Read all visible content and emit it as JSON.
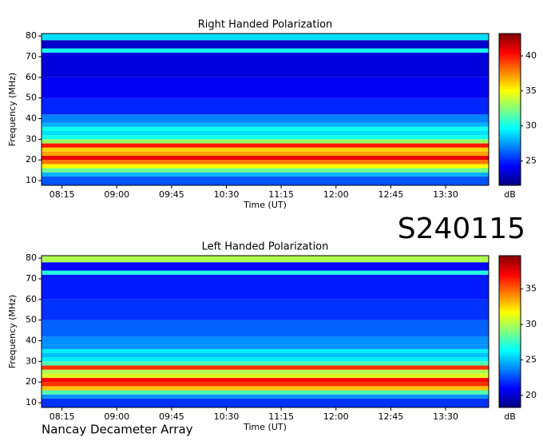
{
  "chart_data": [
    {
      "type": "heatmap",
      "title": "Right Handed Polarization",
      "xlabel": "Time (UT)",
      "ylabel": "Frequency (MHz)",
      "xlim": [
        7.97,
        14.09
      ],
      "xticks": [
        {
          "value": 8.25,
          "label": "08:15"
        },
        {
          "value": 9,
          "label": "09:00"
        },
        {
          "value": 9.75,
          "label": "09:45"
        },
        {
          "value": 10.5,
          "label": "10:30"
        },
        {
          "value": 11.25,
          "label": "11:15"
        },
        {
          "value": 12,
          "label": "12:00"
        },
        {
          "value": 12.75,
          "label": "12:45"
        },
        {
          "value": 13.5,
          "label": "13:30"
        }
      ],
      "ylim": [
        7.7,
        81.2
      ],
      "yticks": [
        10,
        20,
        30,
        40,
        50,
        60,
        70,
        80
      ],
      "y_bins": [
        7.7,
        12,
        14,
        16,
        18,
        20,
        22,
        24,
        26,
        28,
        30,
        32,
        34,
        36,
        38,
        42,
        50,
        60,
        72,
        74,
        78,
        81.2
      ],
      "values": [
        26,
        28,
        32,
        35,
        38,
        41,
        37,
        36,
        40,
        33,
        30,
        29,
        30,
        28,
        27,
        25,
        24,
        23.5,
        30,
        23,
        29
      ],
      "colormap": "jet",
      "clim": [
        21.5,
        43.2
      ],
      "cticks": [
        25,
        30,
        35,
        40
      ],
      "clabel": "dB"
    },
    {
      "type": "heatmap",
      "title": "Left Handed Polarization",
      "xlabel": "Time (UT)",
      "ylabel": "Frequency (MHz)",
      "xlim": [
        7.97,
        14.09
      ],
      "xticks": [
        {
          "value": 8.25,
          "label": "08:15"
        },
        {
          "value": 9,
          "label": "09:00"
        },
        {
          "value": 9.75,
          "label": "09:45"
        },
        {
          "value": 10.5,
          "label": "10:30"
        },
        {
          "value": 11.25,
          "label": "11:15"
        },
        {
          "value": 12,
          "label": "12:00"
        },
        {
          "value": 12.75,
          "label": "12:45"
        },
        {
          "value": 13.5,
          "label": "13:30"
        }
      ],
      "ylim": [
        7.7,
        81.2
      ],
      "yticks": [
        10,
        20,
        30,
        40,
        50,
        60,
        70,
        80
      ],
      "y_bins": [
        7.7,
        12,
        14,
        16,
        18,
        20,
        22,
        24,
        26,
        28,
        30,
        32,
        34,
        36,
        38,
        42,
        50,
        60,
        72,
        74,
        78,
        81.2
      ],
      "values": [
        22,
        24,
        28,
        33,
        36,
        37,
        31,
        30,
        36,
        28,
        26,
        25,
        26,
        24,
        24,
        23,
        22,
        21.5,
        27,
        21,
        30
      ],
      "colormap": "jet",
      "clim": [
        18.3,
        39.7
      ],
      "cticks": [
        20,
        25,
        30,
        35
      ],
      "clabel": "dB"
    }
  ],
  "event_id": "S240115",
  "source": "Nancay Decameter Array"
}
